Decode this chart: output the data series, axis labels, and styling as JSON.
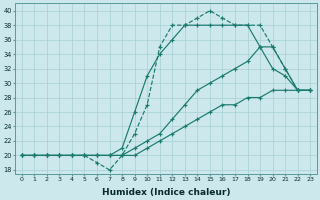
{
  "xlabel": "Humidex (Indice chaleur)",
  "xlim": [
    -0.5,
    23.5
  ],
  "ylim": [
    17.5,
    41
  ],
  "yticks": [
    18,
    20,
    22,
    24,
    26,
    28,
    30,
    32,
    34,
    36,
    38,
    40
  ],
  "xticks": [
    0,
    1,
    2,
    3,
    4,
    5,
    6,
    7,
    8,
    9,
    10,
    11,
    12,
    13,
    14,
    15,
    16,
    17,
    18,
    19,
    20,
    21,
    22,
    23
  ],
  "background_color": "#cce8ec",
  "line_color": "#1a7a6e",
  "grid_color": "#a8d0d4",
  "lines": [
    {
      "style": "--",
      "x": [
        0,
        1,
        2,
        3,
        4,
        5,
        6,
        7,
        8,
        9,
        10,
        11,
        12,
        13,
        14,
        15,
        16,
        17,
        18,
        19,
        20,
        21,
        22,
        23
      ],
      "y": [
        20,
        20,
        20,
        20,
        20,
        20,
        19,
        18,
        20,
        23,
        27,
        35,
        38,
        38,
        39,
        40,
        39,
        38,
        38,
        38,
        35,
        32,
        29,
        29
      ]
    },
    {
      "style": "-",
      "x": [
        0,
        1,
        2,
        3,
        4,
        5,
        6,
        7,
        8,
        9,
        10,
        11,
        12,
        13,
        14,
        15,
        16,
        17,
        18,
        19,
        20,
        21,
        22,
        23
      ],
      "y": [
        20,
        20,
        20,
        20,
        20,
        20,
        20,
        20,
        21,
        26,
        31,
        34,
        36,
        38,
        38,
        38,
        38,
        38,
        38,
        35,
        32,
        31,
        29,
        29
      ]
    },
    {
      "style": "-",
      "x": [
        0,
        1,
        2,
        3,
        4,
        5,
        6,
        7,
        8,
        9,
        10,
        11,
        12,
        13,
        14,
        15,
        16,
        17,
        18,
        19,
        20,
        21,
        22,
        23
      ],
      "y": [
        20,
        20,
        20,
        20,
        20,
        20,
        20,
        20,
        20,
        21,
        22,
        23,
        25,
        27,
        29,
        30,
        31,
        32,
        33,
        35,
        35,
        32,
        29,
        29
      ]
    },
    {
      "style": "-",
      "x": [
        0,
        1,
        2,
        3,
        4,
        5,
        6,
        7,
        8,
        9,
        10,
        11,
        12,
        13,
        14,
        15,
        16,
        17,
        18,
        19,
        20,
        21,
        22,
        23
      ],
      "y": [
        20,
        20,
        20,
        20,
        20,
        20,
        20,
        20,
        20,
        20,
        21,
        22,
        23,
        24,
        25,
        26,
        27,
        27,
        28,
        28,
        29,
        29,
        29,
        29
      ]
    }
  ]
}
